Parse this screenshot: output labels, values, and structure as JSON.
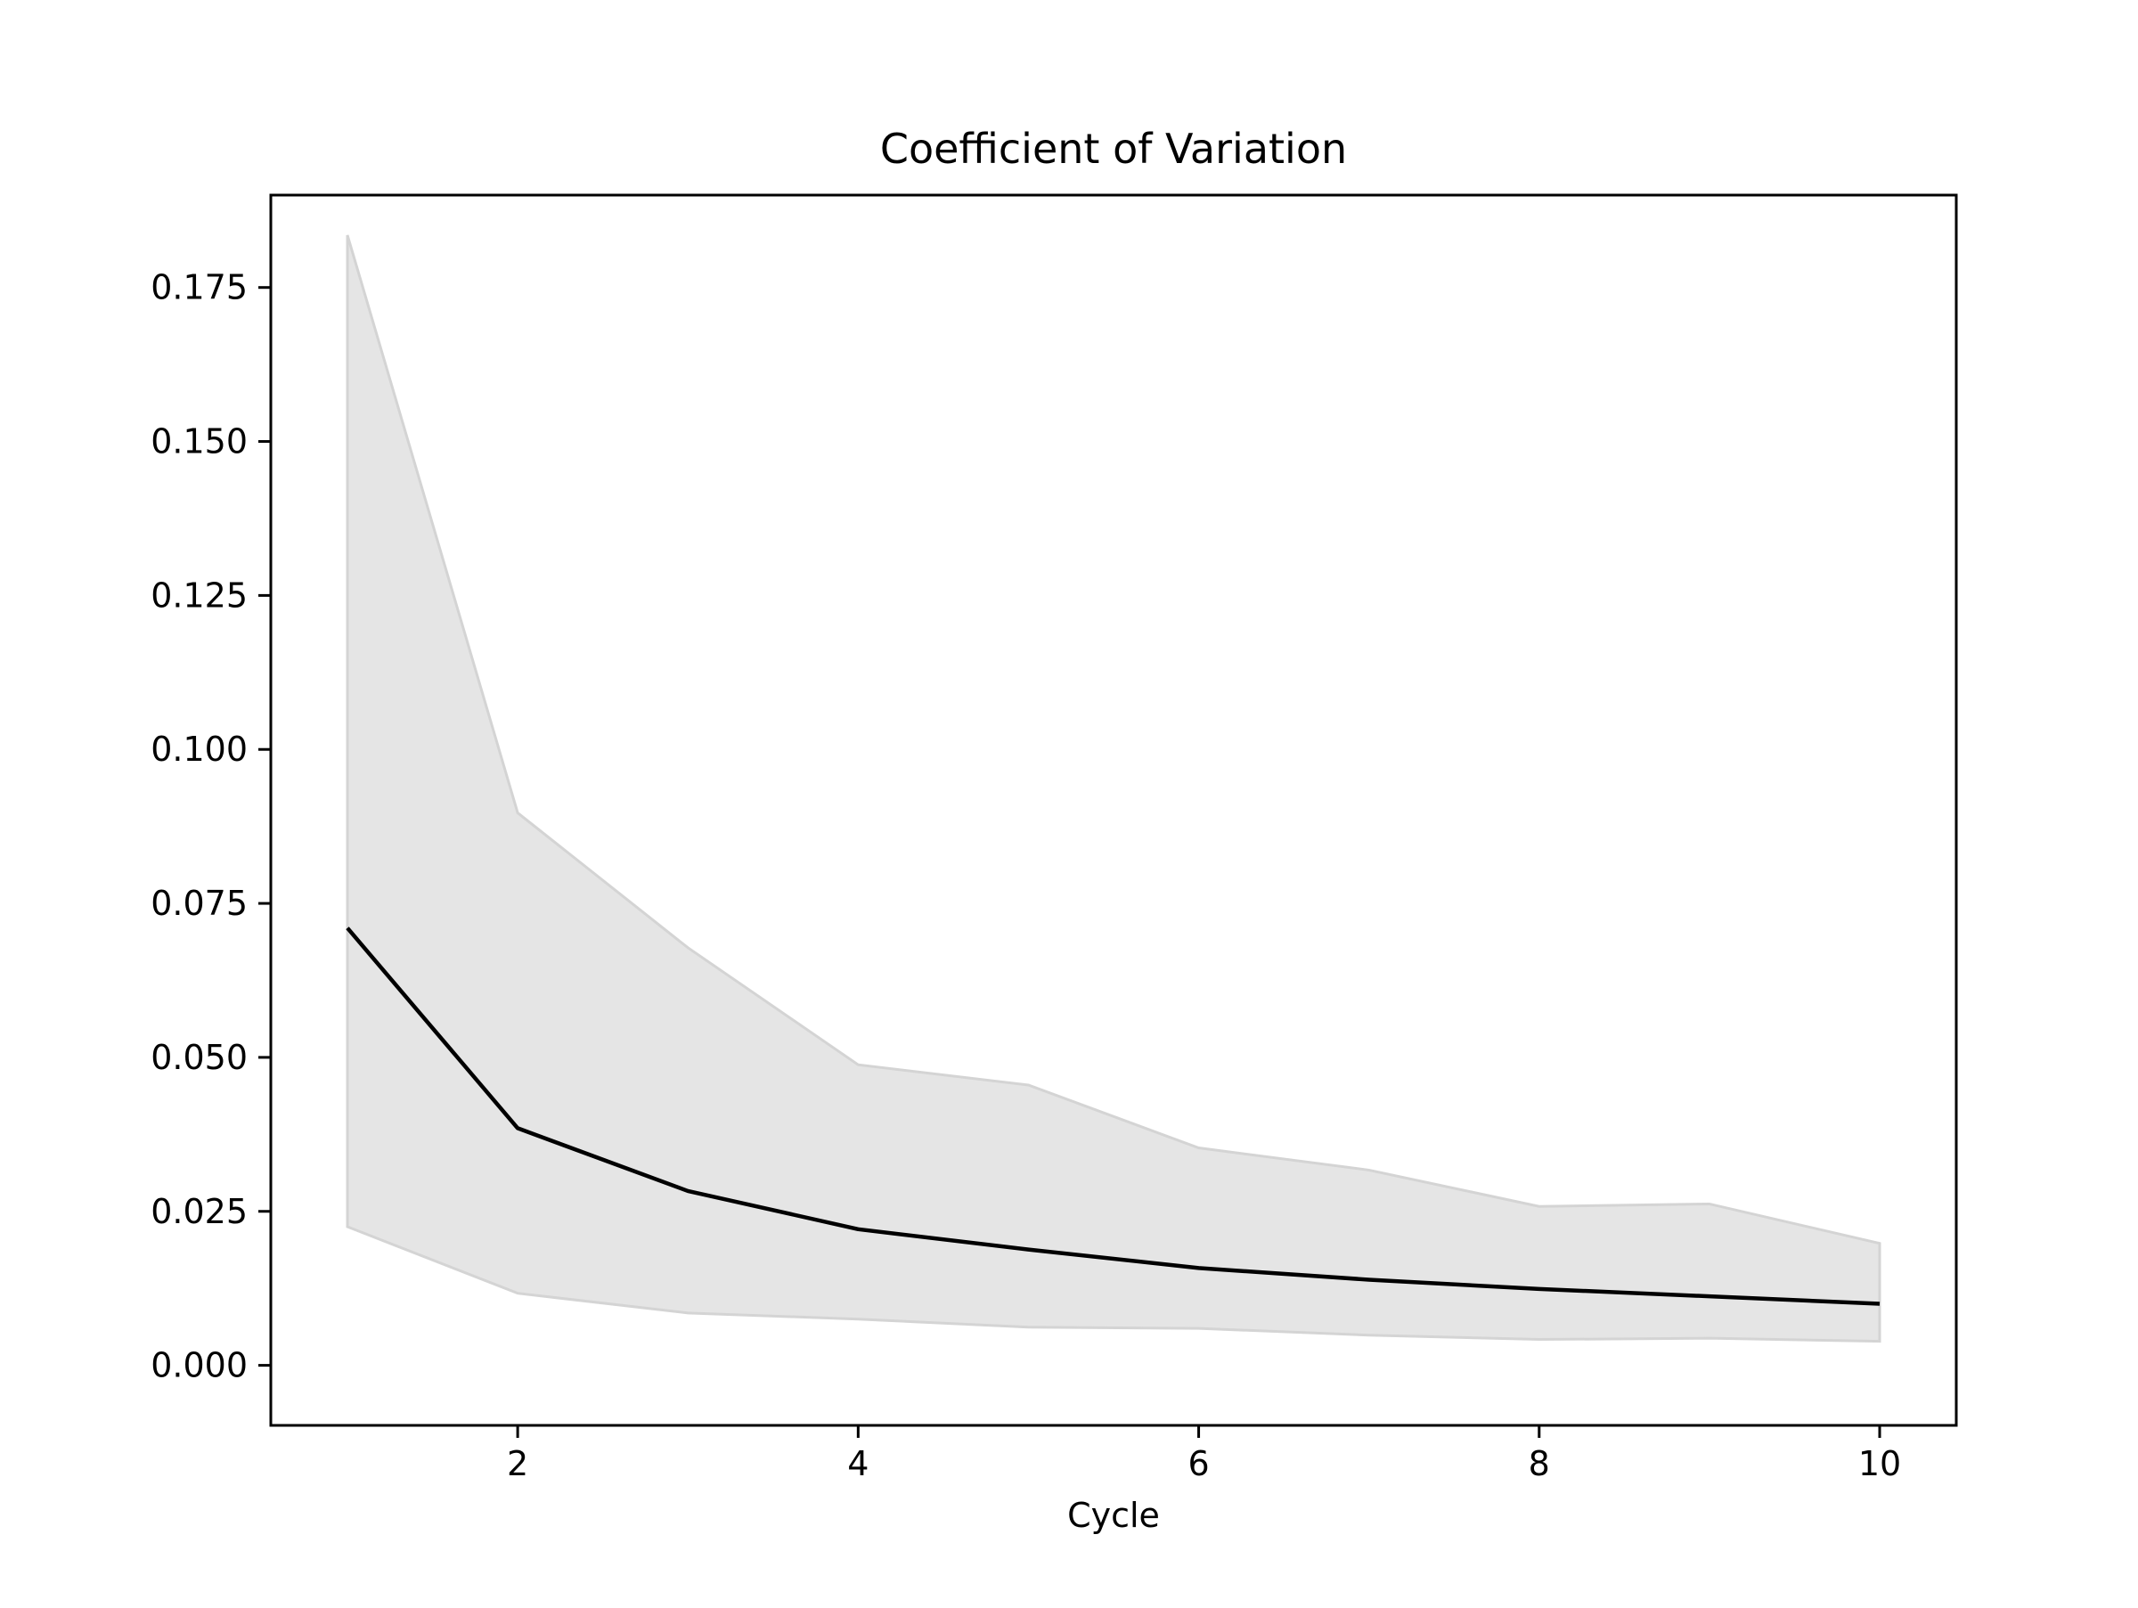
{
  "chart_data": {
    "type": "line",
    "title": "Coefficient of Variation",
    "xlabel": "Cycle",
    "ylabel": "",
    "xlim": [
      0.55,
      10.45
    ],
    "ylim": [
      -0.00975,
      0.19
    ],
    "x_ticks": [
      2,
      4,
      6,
      8,
      10
    ],
    "x_tick_labels": [
      "2",
      "4",
      "6",
      "8",
      "10"
    ],
    "y_ticks": [
      0.0,
      0.025,
      0.05,
      0.075,
      0.1,
      0.125,
      0.15,
      0.175
    ],
    "y_tick_labels": [
      "0.000",
      "0.025",
      "0.050",
      "0.075",
      "0.100",
      "0.125",
      "0.150",
      "0.175"
    ],
    "grid": false,
    "x": [
      1,
      2,
      3,
      4,
      5,
      6,
      7,
      8,
      9,
      10
    ],
    "series": [
      {
        "values": [
          0.071,
          0.0385,
          0.0283,
          0.0221,
          0.0188,
          0.0158,
          0.0139,
          0.0124,
          0.0112,
          0.01
        ],
        "color": "#000000"
      }
    ],
    "band": {
      "lower": [
        0.0225,
        0.0117,
        0.0085,
        0.0075,
        0.0062,
        0.006,
        0.0049,
        0.0042,
        0.0044,
        0.0039
      ],
      "upper": [
        0.1835,
        0.0897,
        0.0678,
        0.0488,
        0.0455,
        0.0353,
        0.0317,
        0.0258,
        0.0262,
        0.0198
      ],
      "fill_color": "#e5e5e5",
      "edge_color": "#d4d4d4"
    }
  }
}
